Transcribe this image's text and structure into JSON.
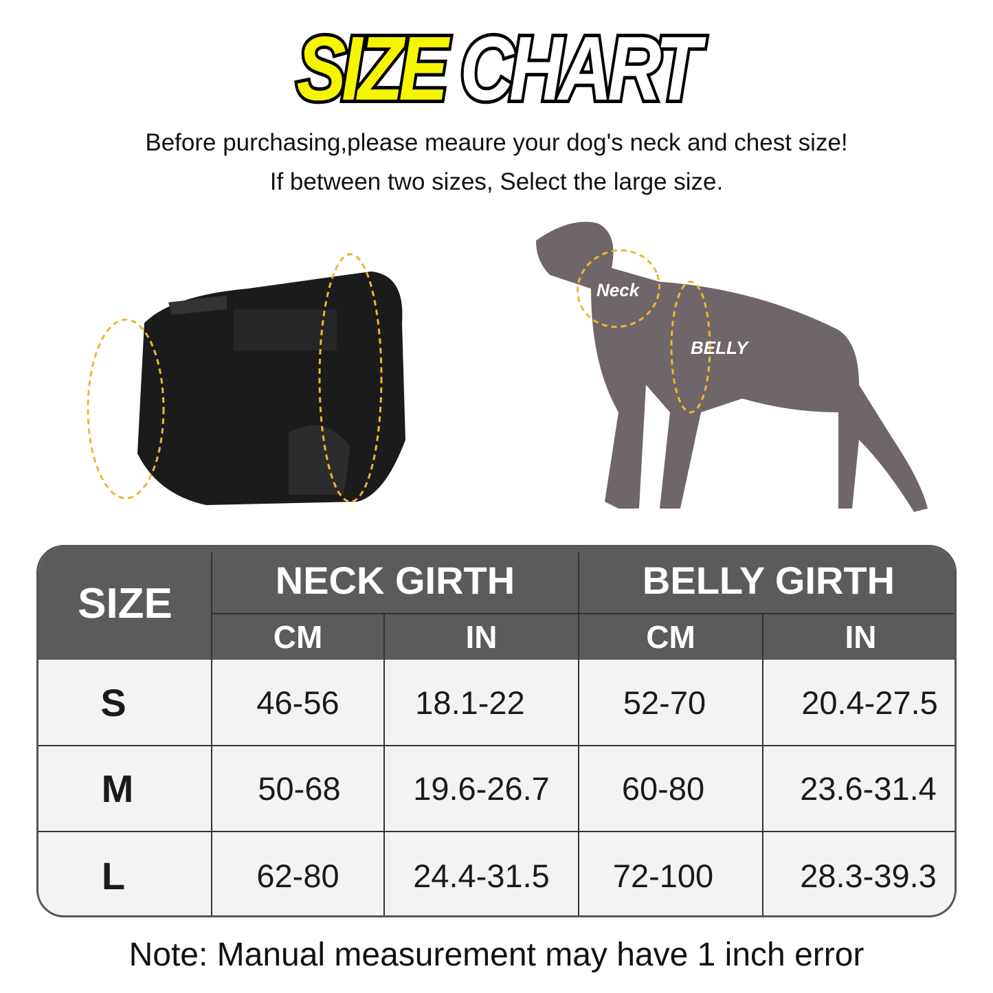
{
  "title": {
    "part1": "SIZE",
    "part2": "CHART"
  },
  "subtitle": {
    "line1": "Before purchasing,please meaure your dog's neck and chest size!",
    "line2": "If between two sizes, Select the large size."
  },
  "illustration": {
    "neck_label": "Neck",
    "belly_label": "BELLY"
  },
  "chart_data": {
    "type": "table",
    "headers": {
      "size": "SIZE",
      "groups": [
        "NECK GIRTH",
        "BELLY GIRTH"
      ],
      "units": [
        "CM",
        "IN",
        "CM",
        "IN"
      ]
    },
    "rows": [
      {
        "size": "S",
        "values": [
          "46-56",
          "18.1-22",
          "52-70",
          "20.4-27.5"
        ]
      },
      {
        "size": "M",
        "values": [
          "50-68",
          "19.6-26.7",
          "60-80",
          "23.6-31.4"
        ]
      },
      {
        "size": "L",
        "values": [
          "62-80",
          "24.4-31.5",
          "72-100",
          "28.3-39.3"
        ]
      }
    ]
  },
  "note": "Note: Manual measurement may have 1 inch error",
  "colors": {
    "title_yellow": "#f5f500",
    "header_bg": "#5b5b5d",
    "measure_line": "#e8b830",
    "dog": "#6e6669"
  }
}
